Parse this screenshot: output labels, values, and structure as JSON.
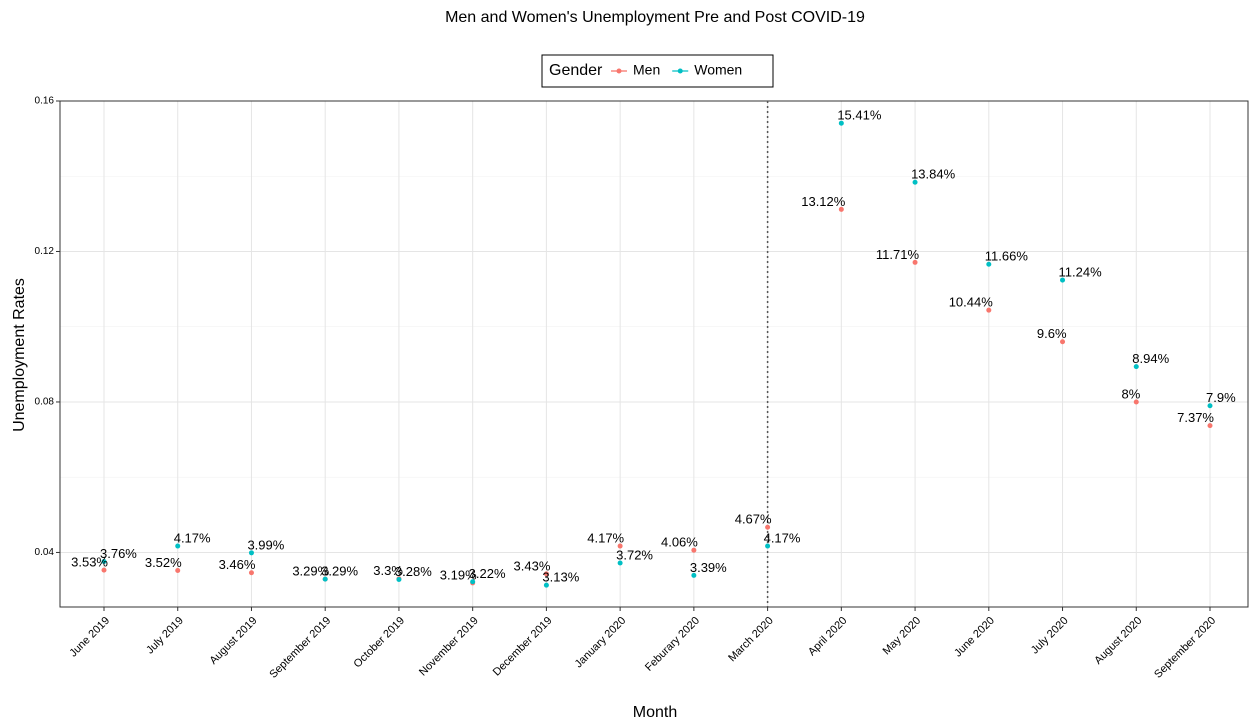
{
  "chart_data": {
    "type": "line",
    "title": "Men and Women's Unemployment Pre and Post COVID-19",
    "x_label": "Month",
    "y_label": "Unemployment Rates",
    "legend_title": "Gender",
    "legend": "top",
    "grid": true,
    "vline_at": "March 2020",
    "categories": [
      "June 2019",
      "July 2019",
      "August 2019",
      "September 2019",
      "October 2019",
      "November 2019",
      "December 2019",
      "January 2020",
      "Feburary 2020",
      "March 2020",
      "April 2020",
      "May 2020",
      "June 2020",
      "July 2020",
      "August 2020",
      "September 2020"
    ],
    "series": [
      {
        "name": "Men",
        "color": "#F8766D",
        "values": [
          0.0353,
          0.0352,
          0.0346,
          0.0329,
          0.033,
          0.0319,
          0.0343,
          0.0417,
          0.0406,
          0.0467,
          0.1312,
          0.1171,
          0.1044,
          0.096,
          0.08,
          0.0737
        ],
        "value_labels": [
          "3.53%",
          "3.52%",
          "3.46%",
          "3.29%",
          "3.3%",
          "3.19%",
          "3.43%",
          "4.17%",
          "4.06%",
          "4.67%",
          "13.12%",
          "11.71%",
          "10.44%",
          "9.6%",
          "8%",
          "7.37%"
        ]
      },
      {
        "name": "Women",
        "color": "#00BFC4",
        "values": [
          0.0376,
          0.0417,
          0.0399,
          0.0329,
          0.0328,
          0.0322,
          0.0313,
          0.0372,
          0.0339,
          0.0417,
          0.1541,
          0.1384,
          0.1166,
          0.1124,
          0.0894,
          0.079
        ],
        "value_labels": [
          "3.76%",
          "4.17%",
          "3.99%",
          "3.29%",
          "3.28%",
          "3.22%",
          "3.13%",
          "3.72%",
          "3.39%",
          "4.17%",
          "15.41%",
          "13.84%",
          "11.66%",
          "11.24%",
          "8.94%",
          "7.9%"
        ]
      }
    ],
    "ylim": [
      0.0255,
      0.16
    ],
    "yticks": [
      0.04,
      0.08,
      0.12,
      0.16
    ]
  }
}
